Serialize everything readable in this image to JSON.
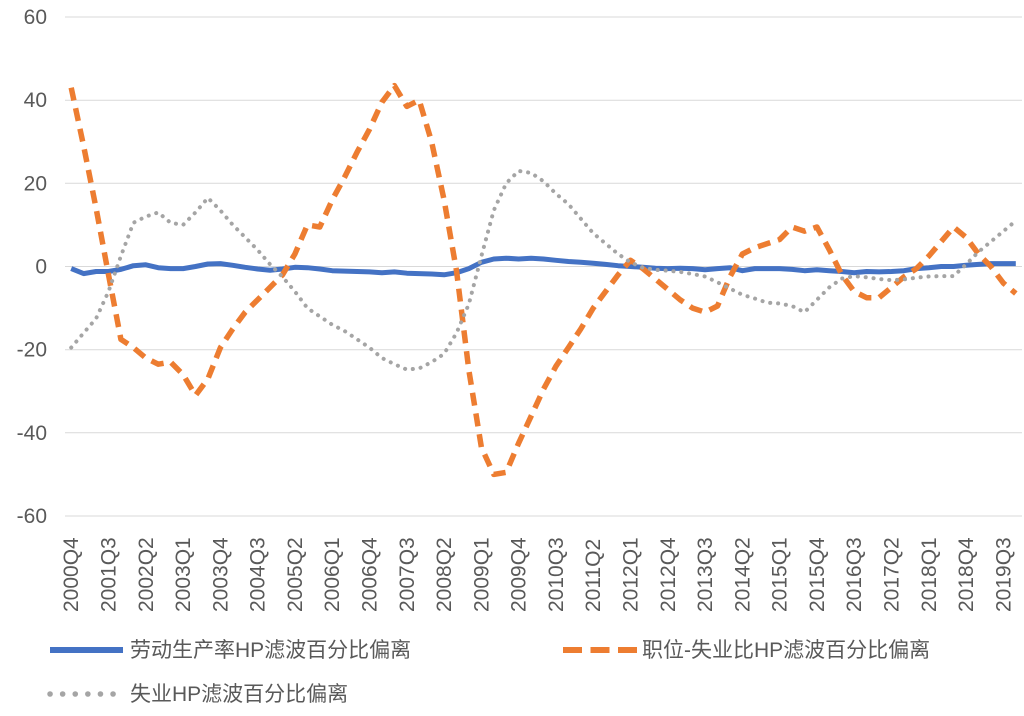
{
  "chart_data": {
    "type": "line",
    "title": "",
    "xlabel": "",
    "ylabel": "",
    "ylim": [
      -60,
      60
    ],
    "ytick_step": 20,
    "y_tick_labels": [
      "60",
      "40",
      "20",
      "0",
      "-20",
      "-40",
      "-60"
    ],
    "grid": true,
    "legend_position": "bottom",
    "x_tick_labels_every": 3,
    "x_tick_labels": [
      "2000Q4",
      "2001Q3",
      "2002Q2",
      "2003Q1",
      "2003Q4",
      "2004Q3",
      "2005Q2",
      "2006Q1",
      "2006Q4",
      "2007Q3",
      "2008Q2",
      "2009Q1",
      "2009Q4",
      "2010Q3",
      "2011Q2",
      "2012Q1",
      "2012Q4",
      "2013Q3",
      "2014Q2",
      "2015Q1",
      "2015Q4",
      "2016Q3",
      "2017Q2",
      "2018Q1",
      "2018Q4",
      "2019Q3"
    ],
    "x_categories": [
      "2000Q4",
      "2001Q1",
      "2001Q2",
      "2001Q3",
      "2001Q4",
      "2002Q1",
      "2002Q2",
      "2002Q3",
      "2002Q4",
      "2003Q1",
      "2003Q2",
      "2003Q3",
      "2003Q4",
      "2004Q1",
      "2004Q2",
      "2004Q3",
      "2004Q4",
      "2005Q1",
      "2005Q2",
      "2005Q3",
      "2005Q4",
      "2006Q1",
      "2006Q2",
      "2006Q3",
      "2006Q4",
      "2007Q1",
      "2007Q2",
      "2007Q3",
      "2007Q4",
      "2008Q1",
      "2008Q2",
      "2008Q3",
      "2008Q4",
      "2009Q1",
      "2009Q2",
      "2009Q3",
      "2009Q4",
      "2010Q1",
      "2010Q2",
      "2010Q3",
      "2010Q4",
      "2011Q1",
      "2011Q2",
      "2011Q3",
      "2011Q4",
      "2012Q1",
      "2012Q2",
      "2012Q3",
      "2012Q4",
      "2013Q1",
      "2013Q2",
      "2013Q3",
      "2013Q4",
      "2014Q1",
      "2014Q2",
      "2014Q3",
      "2014Q4",
      "2015Q1",
      "2015Q2",
      "2015Q3",
      "2015Q4",
      "2016Q1",
      "2016Q2",
      "2016Q3",
      "2016Q4",
      "2017Q1",
      "2017Q2",
      "2017Q3",
      "2017Q4",
      "2018Q1",
      "2018Q2",
      "2018Q3",
      "2018Q4",
      "2019Q1",
      "2019Q2",
      "2019Q3",
      "2019Q4"
    ],
    "series": [
      {
        "name": "劳动生产率HP滤波百分比偏离",
        "slug": "labor-productivity-hp-deviation",
        "color": "#4472C4",
        "line_style": "solid",
        "values": [
          -0.5,
          -1.7,
          -1.2,
          -1.2,
          -0.7,
          0.2,
          0.4,
          -0.3,
          -0.5,
          -0.5,
          0,
          0.6,
          0.7,
          0.3,
          -0.2,
          -0.6,
          -0.9,
          -0.6,
          -0.2,
          -0.3,
          -0.6,
          -1,
          -1.1,
          -1.2,
          -1.3,
          -1.5,
          -1.3,
          -1.6,
          -1.7,
          -1.8,
          -2,
          -1.5,
          -0.5,
          1,
          1.8,
          2,
          1.8,
          2,
          1.8,
          1.5,
          1.2,
          1,
          0.8,
          0.5,
          0.2,
          0,
          -0.2,
          -0.4,
          -0.5,
          -0.4,
          -0.5,
          -0.8,
          -0.5,
          -0.3,
          -1,
          -0.5,
          -0.5,
          -0.5,
          -0.7,
          -1,
          -0.8,
          -1,
          -1.2,
          -1.5,
          -1.2,
          -1.3,
          -1.2,
          -1,
          -0.5,
          -0.3,
          0,
          0,
          0.3,
          0.5,
          0.7,
          0.7,
          0.7
        ]
      },
      {
        "name": "职位-失业比HP滤波百分比偏离",
        "slug": "vacancy-unemployment-ratio-hp-deviation",
        "color": "#ED7D31",
        "line_style": "dashed",
        "values": [
          43,
          29,
          14,
          -2,
          -17.5,
          -19.5,
          -22,
          -23.5,
          -23,
          -26,
          -31,
          -27,
          -19.5,
          -15,
          -11,
          -8,
          -5,
          -2,
          3,
          10,
          9.5,
          16,
          21.5,
          27.5,
          33,
          39.5,
          43.5,
          38.5,
          40,
          30,
          16,
          -1,
          -25,
          -43.5,
          -50,
          -49.5,
          -42.5,
          -36,
          -29.5,
          -24,
          -19.5,
          -15,
          -10,
          -6,
          -2,
          1.5,
          -0.5,
          -3,
          -5.5,
          -8,
          -10,
          -11,
          -9.5,
          -2.5,
          3,
          4.5,
          5.5,
          6.5,
          9.5,
          8.5,
          9.5,
          4,
          -2,
          -6,
          -7.5,
          -7.5,
          -5,
          -2.5,
          -0.5,
          2.5,
          6,
          9.5,
          7,
          3,
          0,
          -4,
          -6.5
        ]
      },
      {
        "name": "失业HP滤波百分比偏离",
        "slug": "unemployment-hp-deviation",
        "color": "#A5A5A5",
        "line_style": "dotted",
        "values": [
          -19.5,
          -16,
          -12.5,
          -6,
          2.5,
          10.5,
          12,
          13,
          10.5,
          10,
          13,
          16.5,
          13.5,
          10,
          7,
          4,
          0.5,
          -2.5,
          -6,
          -10,
          -12,
          -14,
          -15.5,
          -17.5,
          -19.5,
          -22,
          -23.5,
          -24.8,
          -24.5,
          -23,
          -21,
          -16,
          -9,
          2.5,
          13.5,
          20,
          23,
          22.5,
          20.5,
          17.5,
          15,
          11.5,
          8,
          5.5,
          3,
          1,
          -0.3,
          -0.8,
          -1,
          -1.3,
          -1.8,
          -2.4,
          -3.8,
          -5.3,
          -6.8,
          -7.7,
          -8.7,
          -8.9,
          -9.5,
          -11,
          -8,
          -5,
          -2.9,
          -2.3,
          -2.6,
          -3,
          -3.3,
          -3.1,
          -2.7,
          -2.4,
          -2.3,
          -2.3,
          0.5,
          3.5,
          6,
          8.5,
          11
        ]
      }
    ],
    "colors": {
      "axis_text": "#595959",
      "gridline": "#D9D9D9",
      "background": "#FFFFFF"
    }
  }
}
